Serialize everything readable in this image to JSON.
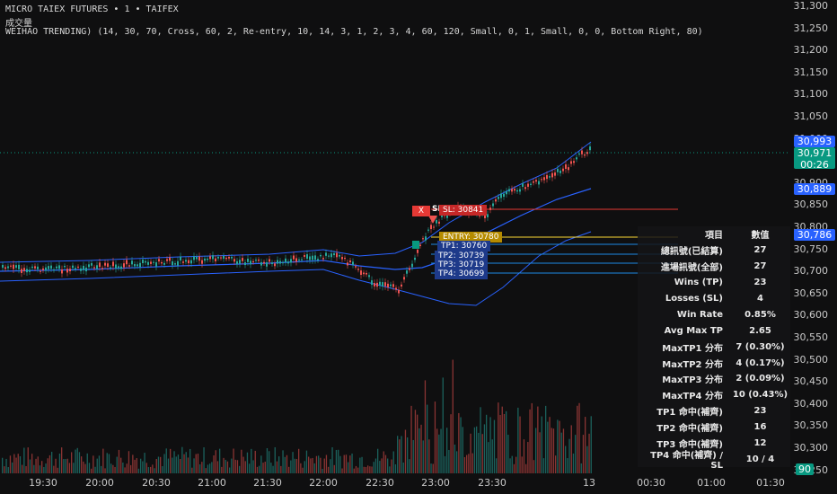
{
  "header": {
    "symbol_line": "MICRO TAIEX FUTURES  •  1  •  TAIFEX",
    "volume_label": "成交量",
    "indicator_line": "WEIHAO TRENDING) (14, 30, 70, Cross, 60, 2, Re-entry, 10, 14, 3, 1, 2, 3, 4, 60, 120, Small, 0, 1, Small, 0, 0, Bottom Right, 80)"
  },
  "price_axis": [
    "31,300",
    "31,250",
    "31,200",
    "31,150",
    "31,100",
    "31,050",
    "31,000",
    "30,950",
    "30,900",
    "30,850",
    "30,800",
    "30,750",
    "30,700",
    "30,650",
    "30,600",
    "30,550",
    "30,500",
    "30,450",
    "30,400",
    "30,350",
    "30,300",
    "30,250"
  ],
  "time_axis": [
    "19:30",
    "20:00",
    "20:30",
    "21:00",
    "21:30",
    "22:00",
    "22:30",
    "23:00",
    "23:30",
    "13",
    "00:30",
    "01:00",
    "01:30"
  ],
  "tags": {
    "upper_band": "30,993",
    "last_price": "30,971",
    "countdown": "00:26",
    "mid_band": "30,889",
    "lower_band": "30,786",
    "volume": "90"
  },
  "signal_labels": {
    "sell_badge": "X",
    "sell_text": "SELL",
    "sl": "SL: 30841",
    "entry": "ENTRY: 30780",
    "tp1": "TP1: 30760",
    "tp2": "TP2: 30739",
    "tp3": "TP3: 30719",
    "tp4": "TP4: 30699"
  },
  "stats_table": {
    "header": [
      "項目",
      "數值"
    ],
    "rows": [
      [
        "總訊號(已結算)",
        "27"
      ],
      [
        "進場訊號(全部)",
        "27"
      ],
      [
        "Wins (TP)",
        "23"
      ],
      [
        "Losses (SL)",
        "4"
      ],
      [
        "Win Rate",
        "0.85%"
      ],
      [
        "Avg Max TP",
        "2.65"
      ],
      [
        "MaxTP1 分布",
        "7 (0.30%)"
      ],
      [
        "MaxTP2 分布",
        "4 (0.17%)"
      ],
      [
        "MaxTP3 分布",
        "2 (0.09%)"
      ],
      [
        "MaxTP4 分布",
        "10 (0.43%)"
      ],
      [
        "TP1 命中(補齊)",
        "23"
      ],
      [
        "TP2 命中(補齊)",
        "16"
      ],
      [
        "TP3 命中(補齊)",
        "12"
      ],
      [
        "TP4 命中(補齊) / SL",
        "10 / 4"
      ]
    ]
  },
  "colors": {
    "background": "#0f0f10",
    "up": "#26a69a",
    "down": "#ef5350",
    "band": "#2962ff",
    "tag_blue": "#2962ff",
    "tag_green": "#089981",
    "sl_line": "#e53935",
    "entry_line": "#fdd835",
    "tp_line": "#1e88e5"
  }
}
